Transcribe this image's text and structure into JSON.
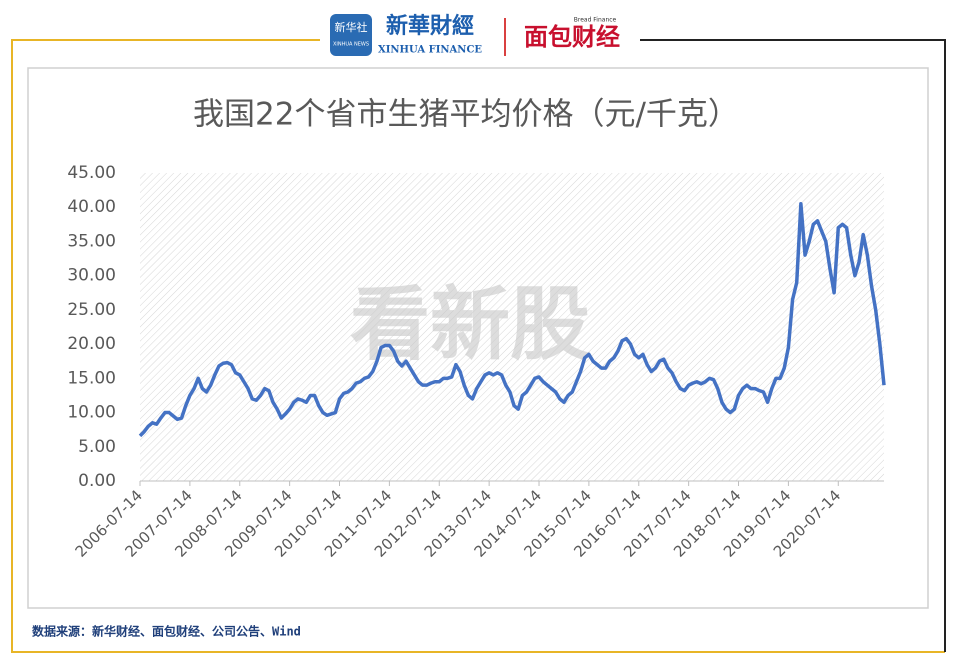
{
  "header": {
    "logo_xinhua": "新华社",
    "logo_xinhua_sub": "XINHUA NEWS",
    "logo_finance": "新華財經",
    "logo_finance_en": "XINHUA FINANCE",
    "logo_bread": "面包财经",
    "logo_bread_en": "Bread Finance"
  },
  "watermark": "看新股",
  "source": "数据来源：新华财经、面包财经、公司公告、Wind",
  "chart_data": {
    "type": "line",
    "title": "我国22个省市生猪平均价格（元/千克）",
    "x": [
      "2006-07-14",
      "2006-08-14",
      "2006-09-14",
      "2006-10-14",
      "2006-11-14",
      "2006-12-14",
      "2007-01-14",
      "2007-02-14",
      "2007-03-14",
      "2007-04-14",
      "2007-05-14",
      "2007-06-14",
      "2007-07-14",
      "2007-08-14",
      "2007-09-14",
      "2007-10-14",
      "2007-11-14",
      "2007-12-14",
      "2008-01-14",
      "2008-02-14",
      "2008-03-14",
      "2008-04-14",
      "2008-05-14",
      "2008-06-14",
      "2008-07-14",
      "2008-08-14",
      "2008-09-14",
      "2008-10-14",
      "2008-11-14",
      "2008-12-14",
      "2009-01-14",
      "2009-02-14",
      "2009-03-14",
      "2009-04-14",
      "2009-05-14",
      "2009-06-14",
      "2009-07-14",
      "2009-08-14",
      "2009-09-14",
      "2009-10-14",
      "2009-11-14",
      "2009-12-14",
      "2010-01-14",
      "2010-02-14",
      "2010-03-14",
      "2010-04-14",
      "2010-05-14",
      "2010-06-14",
      "2010-07-14",
      "2010-08-14",
      "2010-09-14",
      "2010-10-14",
      "2010-11-14",
      "2010-12-14",
      "2011-01-14",
      "2011-02-14",
      "2011-03-14",
      "2011-04-14",
      "2011-05-14",
      "2011-06-14",
      "2011-07-14",
      "2011-08-14",
      "2011-09-14",
      "2011-10-14",
      "2011-11-14",
      "2011-12-14",
      "2012-01-14",
      "2012-02-14",
      "2012-03-14",
      "2012-04-14",
      "2012-05-14",
      "2012-06-14",
      "2012-07-14",
      "2012-08-14",
      "2012-09-14",
      "2012-10-14",
      "2012-11-14",
      "2012-12-14",
      "2013-01-14",
      "2013-02-14",
      "2013-03-14",
      "2013-04-14",
      "2013-05-14",
      "2013-06-14",
      "2013-07-14",
      "2013-08-14",
      "2013-09-14",
      "2013-10-14",
      "2013-11-14",
      "2013-12-14",
      "2014-01-14",
      "2014-02-14",
      "2014-03-14",
      "2014-04-14",
      "2014-05-14",
      "2014-06-14",
      "2014-07-14",
      "2014-08-14",
      "2014-09-14",
      "2014-10-14",
      "2014-11-14",
      "2014-12-14",
      "2015-01-14",
      "2015-02-14",
      "2015-03-14",
      "2015-04-14",
      "2015-05-14",
      "2015-06-14",
      "2015-07-14",
      "2015-08-14",
      "2015-09-14",
      "2015-10-14",
      "2015-11-14",
      "2015-12-14",
      "2016-01-14",
      "2016-02-14",
      "2016-03-14",
      "2016-04-14",
      "2016-05-14",
      "2016-06-14",
      "2016-07-14",
      "2016-08-14",
      "2016-09-14",
      "2016-10-14",
      "2016-11-14",
      "2016-12-14",
      "2017-01-14",
      "2017-02-14",
      "2017-03-14",
      "2017-04-14",
      "2017-05-14",
      "2017-06-14",
      "2017-07-14",
      "2017-08-14",
      "2017-09-14",
      "2017-10-14",
      "2017-11-14",
      "2017-12-14",
      "2018-01-14",
      "2018-02-14",
      "2018-03-14",
      "2018-04-14",
      "2018-05-14",
      "2018-06-14",
      "2018-07-14",
      "2018-08-14",
      "2018-09-14",
      "2018-10-14",
      "2018-11-14",
      "2018-12-14",
      "2019-01-14",
      "2019-02-14",
      "2019-03-14",
      "2019-04-14",
      "2019-05-14",
      "2019-06-14",
      "2019-07-14",
      "2019-08-14",
      "2019-09-14",
      "2019-10-14",
      "2019-11-14",
      "2019-12-14",
      "2020-01-14",
      "2020-02-14",
      "2020-03-14",
      "2020-04-14",
      "2020-05-14",
      "2020-06-14",
      "2020-07-14",
      "2020-08-14",
      "2020-09-14",
      "2020-10-14",
      "2020-11-14",
      "2020-12-14",
      "2021-01-14",
      "2021-02-14",
      "2021-03-14",
      "2021-04-14",
      "2021-05-14",
      "2021-06-14"
    ],
    "series": [
      {
        "name": "生猪平均价格",
        "color": "#4472c4",
        "values": [
          6.6,
          7.2,
          8.0,
          8.5,
          8.3,
          9.2,
          10.0,
          10.0,
          9.5,
          9.0,
          9.2,
          11.0,
          12.5,
          13.5,
          15.0,
          13.5,
          13.0,
          14.0,
          15.5,
          16.8,
          17.2,
          17.3,
          17.0,
          15.8,
          15.5,
          14.5,
          13.5,
          12.0,
          11.8,
          12.5,
          13.5,
          13.2,
          11.5,
          10.5,
          9.2,
          9.8,
          10.5,
          11.5,
          12.0,
          11.8,
          11.5,
          12.5,
          12.5,
          11.0,
          10.0,
          9.6,
          9.8,
          10.0,
          12.0,
          12.8,
          13.0,
          13.5,
          14.3,
          14.5,
          15.0,
          15.2,
          16.0,
          17.5,
          19.5,
          19.8,
          19.8,
          19.0,
          17.5,
          16.8,
          17.5,
          16.5,
          15.5,
          14.5,
          14.0,
          14.0,
          14.3,
          14.5,
          14.5,
          15.0,
          15.0,
          15.2,
          17.0,
          16.0,
          14.0,
          12.5,
          12.0,
          13.5,
          14.5,
          15.5,
          15.8,
          15.5,
          15.8,
          15.5,
          14.0,
          13.0,
          11.0,
          10.5,
          12.5,
          13.0,
          14.0,
          15.0,
          15.2,
          14.5,
          14.0,
          13.5,
          13.0,
          12.0,
          11.5,
          12.5,
          13.0,
          14.5,
          16.0,
          18.0,
          18.5,
          17.5,
          17.0,
          16.5,
          16.5,
          17.5,
          18.0,
          19.0,
          20.5,
          20.8,
          20.0,
          18.5,
          18.0,
          18.5,
          17.0,
          16.0,
          16.5,
          17.5,
          17.8,
          16.5,
          15.8,
          14.5,
          13.5,
          13.2,
          14.0,
          14.3,
          14.5,
          14.2,
          14.5,
          15.0,
          14.8,
          13.5,
          11.5,
          10.5,
          10.0,
          10.5,
          12.5,
          13.5,
          14.0,
          13.5,
          13.5,
          13.2,
          13.0,
          11.5,
          13.5,
          15.0,
          15.0,
          16.5,
          19.5,
          26.5,
          29.0,
          40.5,
          33.0,
          35.0,
          37.5,
          38.0,
          36.5,
          35.0,
          31.0,
          27.5,
          37.0,
          37.5,
          37.0,
          33.0,
          30.0,
          32.0,
          36.0,
          33.0,
          28.5,
          25.0,
          20.0,
          14.0
        ]
      }
    ],
    "ylim": [
      0,
      45
    ],
    "yticks": [
      {
        "value": 0,
        "label": "0.00"
      },
      {
        "value": 5,
        "label": "5.00"
      },
      {
        "value": 10,
        "label": "10.00"
      },
      {
        "value": 15,
        "label": "15.00"
      },
      {
        "value": 20,
        "label": "20.00"
      },
      {
        "value": 25,
        "label": "25.00"
      },
      {
        "value": 30,
        "label": "30.00"
      },
      {
        "value": 35,
        "label": "35.00"
      },
      {
        "value": 40,
        "label": "40.00"
      },
      {
        "value": 45,
        "label": "45.00"
      }
    ],
    "xticks": [
      "2006-07-14",
      "2007-07-14",
      "2008-07-14",
      "2009-07-14",
      "2010-07-14",
      "2011-07-14",
      "2012-07-14",
      "2013-07-14",
      "2014-07-14",
      "2015-07-14",
      "2016-07-14",
      "2017-07-14",
      "2018-07-14",
      "2019-07-14",
      "2020-07-14"
    ]
  }
}
